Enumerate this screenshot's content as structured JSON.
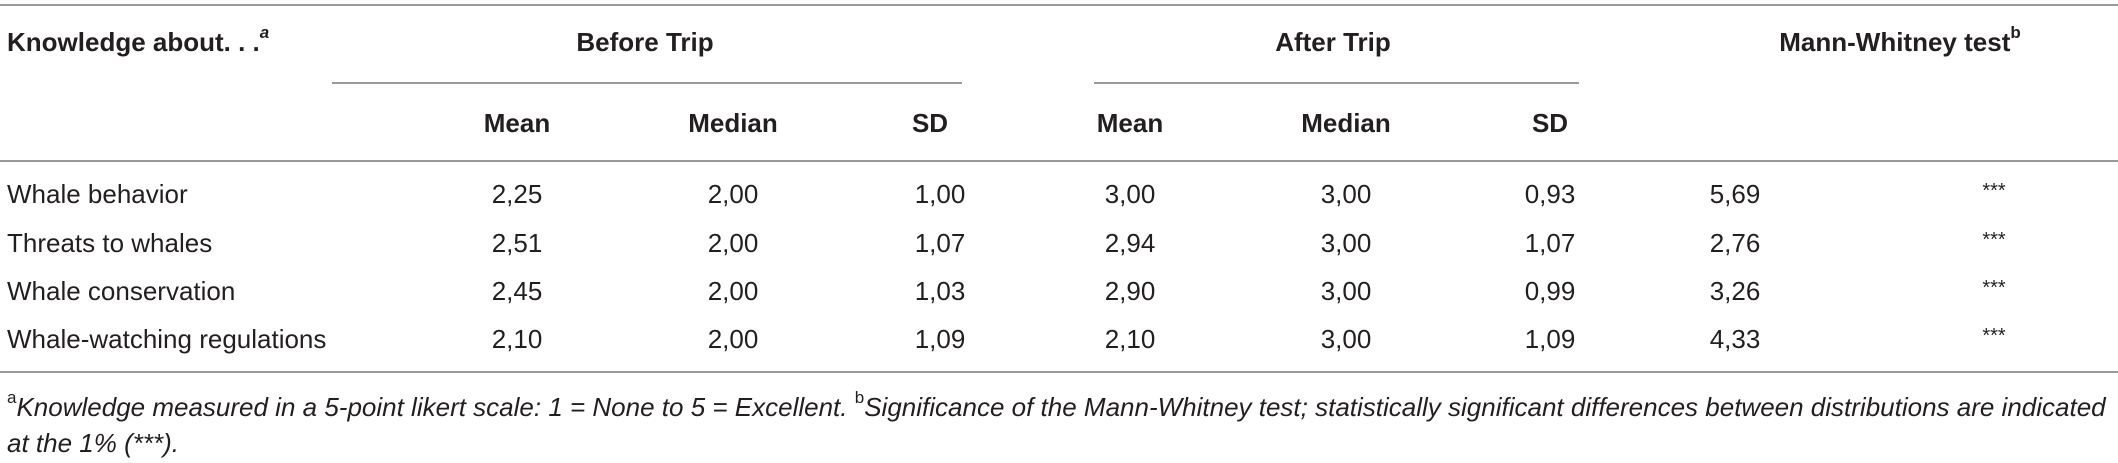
{
  "table": {
    "header": {
      "knowledge_label": "Knowledge about. . .",
      "knowledge_sup": "a",
      "before_trip": "Before Trip",
      "after_trip": "After Trip",
      "mann_whitney": "Mann-Whitney test",
      "mann_whitney_sup": "b",
      "mean": "Mean",
      "median": "Median",
      "sd": "SD"
    },
    "rows": [
      {
        "label": "Whale behavior",
        "b_mean": "2,25",
        "b_median": "2,00",
        "b_sd": "1,00",
        "a_mean": "3,00",
        "a_median": "3,00",
        "a_sd": "0,93",
        "mw": "5,69",
        "sig": "***"
      },
      {
        "label": "Threats to whales",
        "b_mean": "2,51",
        "b_median": "2,00",
        "b_sd": "1,07",
        "a_mean": "2,94",
        "a_median": "3,00",
        "a_sd": "1,07",
        "mw": "2,76",
        "sig": "***"
      },
      {
        "label": "Whale conservation",
        "b_mean": "2,45",
        "b_median": "2,00",
        "b_sd": "1,03",
        "a_mean": "2,90",
        "a_median": "3,00",
        "a_sd": "0,99",
        "mw": "3,26",
        "sig": "***"
      },
      {
        "label": "Whale-watching regulations",
        "b_mean": "2,10",
        "b_median": "2,00",
        "b_sd": "1,09",
        "a_mean": "2,10",
        "a_median": "3,00",
        "a_sd": "1,09",
        "mw": "4,33",
        "sig": "***"
      }
    ]
  },
  "footnote": {
    "a_sup": "a",
    "a_text": "Knowledge measured in a 5-point likert scale: 1 = None to 5 = Excellent.",
    "b_sup": "b",
    "b_text": "Significance of the Mann-Whitney test; statistically significant differences between distributions are indicated at the 1% (***)."
  }
}
